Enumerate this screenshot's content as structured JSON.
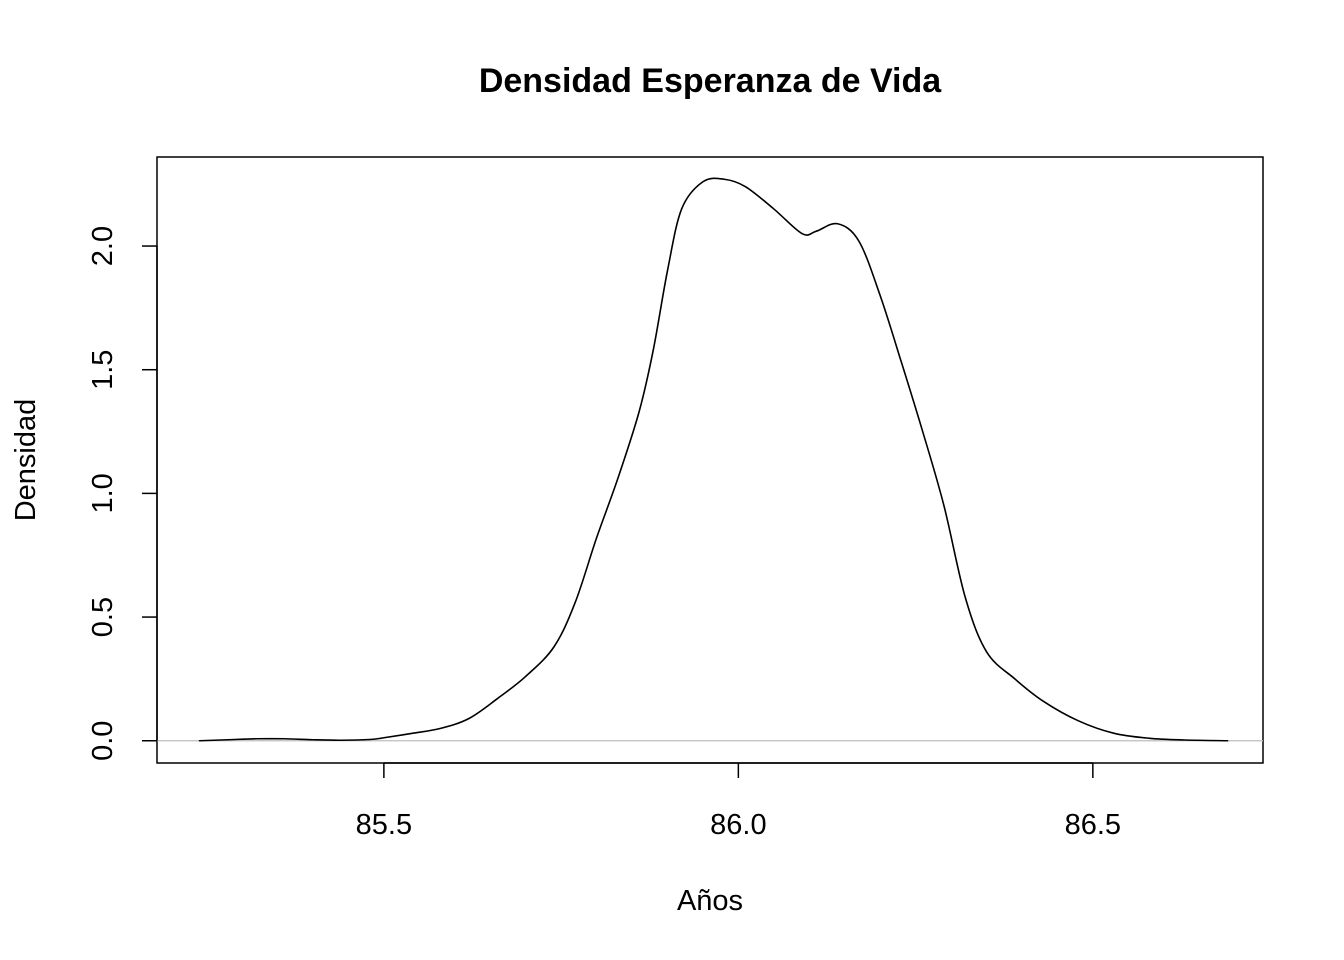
{
  "chart_data": {
    "type": "line",
    "title": "Densidad Esperanza de Vida",
    "xlabel": "Años",
    "ylabel": "Densidad",
    "xlim": [
      85.18,
      86.74
    ],
    "ylim": [
      -0.09,
      2.36
    ],
    "x_ticks": [
      85.5,
      86.0,
      86.5
    ],
    "x_tick_labels": [
      "85.5",
      "86.0",
      "86.5"
    ],
    "y_ticks": [
      0.0,
      0.5,
      1.0,
      1.5,
      2.0
    ],
    "y_tick_labels": [
      "0.0",
      "0.5",
      "1.0",
      "1.5",
      "2.0"
    ],
    "grid": false,
    "zero_line": true,
    "zero_line_color": "#bebebe",
    "line_color": "#000000",
    "series": [
      {
        "points": [
          [
            85.24,
            0.0
          ],
          [
            85.28,
            0.004
          ],
          [
            85.32,
            0.008
          ],
          [
            85.36,
            0.008
          ],
          [
            85.4,
            0.004
          ],
          [
            85.44,
            0.002
          ],
          [
            85.48,
            0.005
          ],
          [
            85.5,
            0.012
          ],
          [
            85.54,
            0.03
          ],
          [
            85.58,
            0.05
          ],
          [
            85.62,
            0.09
          ],
          [
            85.66,
            0.17
          ],
          [
            85.7,
            0.26
          ],
          [
            85.74,
            0.38
          ],
          [
            85.77,
            0.56
          ],
          [
            85.8,
            0.82
          ],
          [
            85.83,
            1.06
          ],
          [
            85.86,
            1.33
          ],
          [
            85.88,
            1.58
          ],
          [
            85.9,
            1.9
          ],
          [
            85.92,
            2.15
          ],
          [
            85.95,
            2.26
          ],
          [
            85.98,
            2.27
          ],
          [
            86.01,
            2.24
          ],
          [
            86.05,
            2.15
          ],
          [
            86.09,
            2.05
          ],
          [
            86.11,
            2.06
          ],
          [
            86.14,
            2.09
          ],
          [
            86.17,
            2.02
          ],
          [
            86.2,
            1.8
          ],
          [
            86.23,
            1.53
          ],
          [
            86.26,
            1.25
          ],
          [
            86.29,
            0.95
          ],
          [
            86.32,
            0.58
          ],
          [
            86.35,
            0.36
          ],
          [
            86.39,
            0.25
          ],
          [
            86.43,
            0.16
          ],
          [
            86.48,
            0.08
          ],
          [
            86.53,
            0.03
          ],
          [
            86.58,
            0.01
          ],
          [
            86.63,
            0.003
          ],
          [
            86.69,
            0.0
          ]
        ]
      }
    ]
  }
}
